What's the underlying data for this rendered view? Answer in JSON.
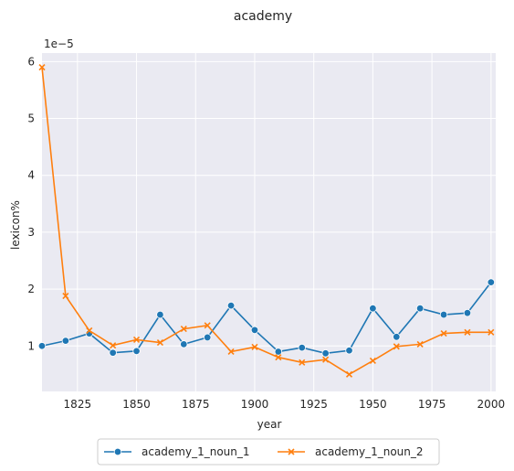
{
  "chart_data": {
    "type": "line",
    "title": "academy",
    "xlabel": "year",
    "ylabel": "lexicon%",
    "y_multiplier_label": "1e−5",
    "xlim": [
      1810,
      2002
    ],
    "ylim": [
      0.2,
      6.15
    ],
    "x_ticks": [
      1825,
      1850,
      1875,
      1900,
      1925,
      1950,
      1975,
      2000
    ],
    "y_ticks": [
      1,
      2,
      3,
      4,
      5,
      6
    ],
    "grid": true,
    "legend_position": "bottom-center",
    "colors": {
      "series_1": "#1f77b4",
      "series_2": "#ff7f0e",
      "plot_background": "#eaeaf2",
      "grid": "#ffffff"
    },
    "x": [
      1810,
      1820,
      1830,
      1840,
      1850,
      1860,
      1870,
      1880,
      1890,
      1900,
      1910,
      1920,
      1930,
      1940,
      1950,
      1960,
      1970,
      1980,
      1990,
      2000
    ],
    "series": [
      {
        "name": "academy_1_noun_1",
        "marker": "circle",
        "values": [
          1.0,
          1.09,
          1.22,
          0.88,
          0.91,
          1.55,
          1.03,
          1.15,
          1.71,
          1.28,
          0.9,
          0.97,
          0.87,
          0.92,
          1.66,
          1.16,
          1.66,
          1.55,
          1.58,
          2.12
        ]
      },
      {
        "name": "academy_1_noun_2",
        "marker": "x",
        "values": [
          5.9,
          1.88,
          1.27,
          1.01,
          1.11,
          1.06,
          1.3,
          1.36,
          0.9,
          0.98,
          0.8,
          0.71,
          0.76,
          0.5,
          0.74,
          0.99,
          1.03,
          1.22,
          1.24,
          1.24
        ]
      }
    ]
  }
}
